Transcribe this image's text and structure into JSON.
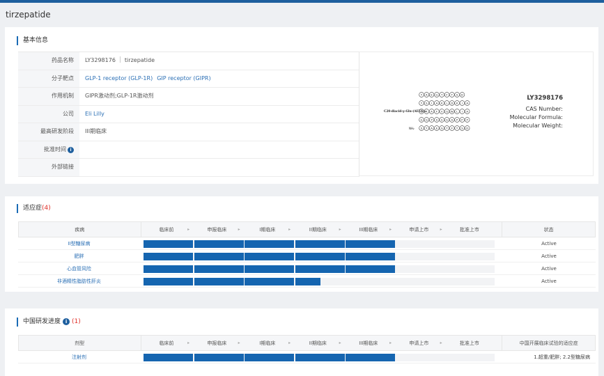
{
  "page": {
    "title": "tirzepatide"
  },
  "basic": {
    "section_title": "基本信息",
    "rows": [
      {
        "key": "药品名称",
        "values": [
          "LY3298176",
          "tirzepatide"
        ],
        "link": false
      },
      {
        "key": "分子靶点",
        "values": [
          "GLP-1 receptor (GLP-1R)",
          "GIP receptor (GIPR)"
        ],
        "link": true
      },
      {
        "key": "作用机制",
        "values": [
          "GIPR激动剂;GLP-1R激动剂"
        ],
        "link": false
      },
      {
        "key": "公司",
        "values": [
          "Eli Lilly"
        ],
        "link": true
      },
      {
        "key": "最高研发阶段",
        "values": [
          "III期临床"
        ],
        "link": false
      },
      {
        "key": "批准时间",
        "values": [
          ""
        ],
        "link": false,
        "info_icon": "info-icon"
      },
      {
        "key": "外部链接",
        "values": [
          ""
        ],
        "link": false
      }
    ],
    "structure": {
      "code": "LY3298176",
      "cas": "CAS Number:",
      "formula": "Molecular Formula:",
      "weight": "Molecular Weight:",
      "side_label": "C20-diacid-γ-Glu-(AEEA)₂-",
      "end_label": "NH₂"
    }
  },
  "indications": {
    "section_title": "适应症",
    "count": "(4)",
    "headers": {
      "name": "疾病",
      "status": "状态"
    },
    "phases": [
      "临床前",
      "申报临床",
      "I期临床",
      "II期临床",
      "III期临床",
      "申请上市",
      "批准上市"
    ],
    "rows": [
      {
        "name": "II型糖尿病",
        "progress": 5,
        "status": "Active"
      },
      {
        "name": "肥胖",
        "progress": 5,
        "status": "Active"
      },
      {
        "name": "心血管风险",
        "progress": 5,
        "status": "Active"
      },
      {
        "name": "非酒精性脂肪性肝炎",
        "progress": 3.5,
        "status": "Active"
      }
    ]
  },
  "china": {
    "section_title": "中国研发进度",
    "count": "(1)",
    "headers": {
      "name": "剂型",
      "status": "中国开展临床试验的适应症"
    },
    "phases": [
      "临床前",
      "申报临床",
      "I期临床",
      "II期临床",
      "III期临床",
      "申请上市",
      "批准上市"
    ],
    "rows": [
      {
        "name": "注射剂",
        "progress": 5,
        "status": "1.超重/肥胖; 2.2型糖尿病"
      }
    ]
  },
  "colors": {
    "accent": "#1565b0",
    "link": "#2a6fb5",
    "count": "#e0312a"
  }
}
